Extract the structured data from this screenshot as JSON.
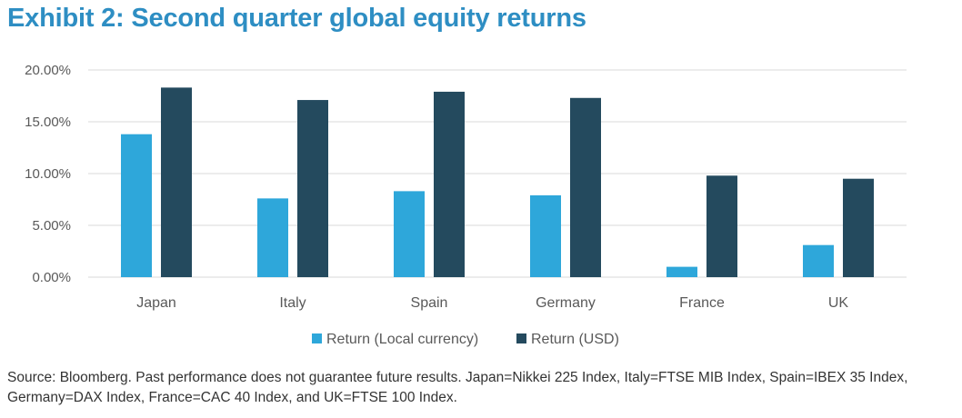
{
  "title": "Exhibit 2: Second quarter global equity returns",
  "source": "Source: Bloomberg. Past performance does not guarantee future results. Japan=Nikkei 225 Index, Italy=FTSE MIB Index, Spain=IBEX 35 Index, Germany=DAX Index, France=CAC 40 Index, and UK=FTSE 100 Index.",
  "colors": {
    "local": "#2ea7da",
    "usd": "#244a5e",
    "grid": "#d9d9d9",
    "title": "#2e8ec3"
  },
  "chart_data": {
    "type": "bar",
    "categories": [
      "Japan",
      "Italy",
      "Spain",
      "Germany",
      "France",
      "UK"
    ],
    "series": [
      {
        "name": "Return (Local currency)",
        "values": [
          13.8,
          7.6,
          8.3,
          7.9,
          1.0,
          3.1
        ]
      },
      {
        "name": "Return (USD)",
        "values": [
          18.3,
          17.1,
          17.9,
          17.3,
          9.8,
          9.5
        ]
      }
    ],
    "ylim": [
      0,
      20
    ],
    "yticks": [
      0,
      5,
      10,
      15,
      20
    ],
    "ytick_labels": [
      "0.00%",
      "5.00%",
      "10.00%",
      "15.00%",
      "20.00%"
    ],
    "grid": true,
    "legend_position": "bottom",
    "xlabel": "",
    "ylabel": ""
  }
}
